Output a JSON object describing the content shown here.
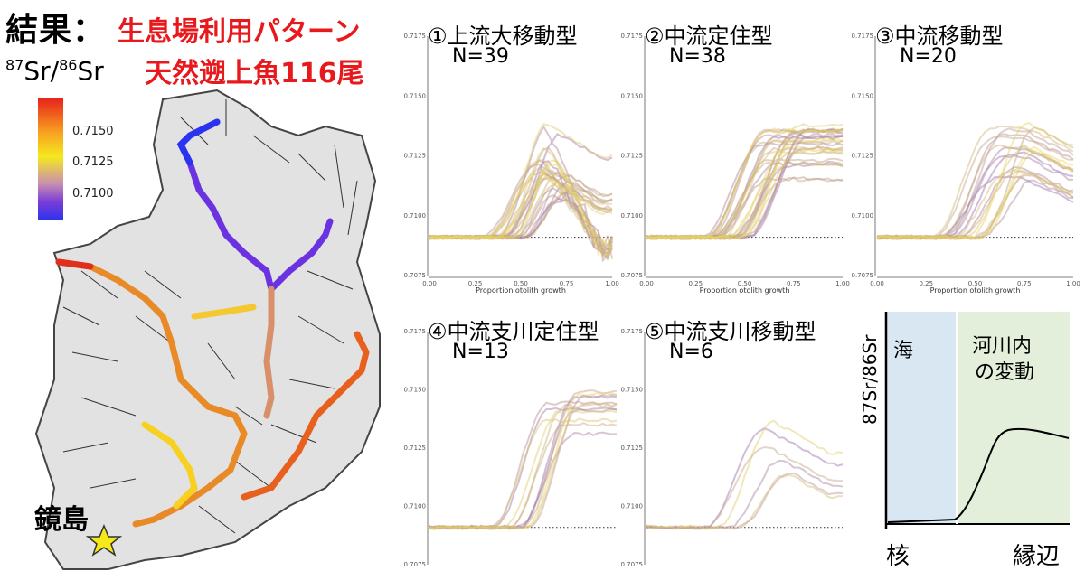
{
  "title": {
    "main": "結果：",
    "sub": "生息場利用パターン",
    "sub2": "天然遡上魚116尾"
  },
  "isotope_label": {
    "sup1": "87",
    "sr1": "Sr/",
    "sup2": "86",
    "sr2": "Sr"
  },
  "colorbar": {
    "ticks": [
      "0.7150",
      "0.7125",
      "0.7100"
    ],
    "colors": [
      "#e8201c",
      "#f7a020",
      "#f5e81e",
      "#c98fb0",
      "#7a3cd8",
      "#2a33f0"
    ]
  },
  "map": {
    "place_label": "鏡島",
    "star_color": "#f7e81a"
  },
  "chart_data": [
    {
      "type": "line",
      "title": "①上流大移動型",
      "n_label": "N=39",
      "xlabel": "Proportion otolith growth",
      "xlim": [
        0,
        1
      ],
      "ylim": [
        0.7075,
        0.7175
      ],
      "x_ticks": [
        "0.00",
        "0.25",
        "0.50",
        "0.75",
        "1.00"
      ],
      "y_ticks": [
        "0.7075",
        "0.7100",
        "0.7125",
        "0.7150",
        "0.7175"
      ],
      "baseline": 0.7091,
      "pattern": "rise then fall"
    },
    {
      "type": "line",
      "title": "②中流定住型",
      "n_label": "N=38",
      "xlabel": "Proportion otolith growth",
      "xlim": [
        0,
        1
      ],
      "ylim": [
        0.7075,
        0.7175
      ],
      "x_ticks": [
        "0.00",
        "0.25",
        "0.50",
        "0.75",
        "1.00"
      ],
      "y_ticks": [
        "0.7075",
        "0.7100",
        "0.7125",
        "0.7150",
        "0.7175"
      ],
      "baseline": 0.7091,
      "pattern": "rise then plateau"
    },
    {
      "type": "line",
      "title": "③中流移動型",
      "n_label": "N=20",
      "xlabel": "Proportion otolith growth",
      "xlim": [
        0,
        1
      ],
      "ylim": [
        0.7075,
        0.7175
      ],
      "x_ticks": [
        "0.00",
        "0.25",
        "0.50",
        "0.75",
        "1.00"
      ],
      "y_ticks": [
        "0.7075",
        "0.7100",
        "0.7125",
        "0.7150",
        "0.7175"
      ],
      "baseline": 0.7091,
      "pattern": "rise then slight fall"
    },
    {
      "type": "line",
      "title": "④中流支川定住型",
      "n_label": "N=13",
      "xlabel": "",
      "xlim": [
        0,
        1
      ],
      "ylim": [
        0.7075,
        0.7175
      ],
      "x_ticks": [],
      "y_ticks": [
        "0.7075",
        "0.7100",
        "0.7125",
        "0.7150",
        "0.7175"
      ],
      "baseline": 0.7091,
      "pattern": "rise to high plateau"
    },
    {
      "type": "line",
      "title": "⑤中流支川移動型",
      "n_label": "N=6",
      "xlabel": "",
      "xlim": [
        0,
        1
      ],
      "ylim": [
        0.7075,
        0.7175
      ],
      "x_ticks": [],
      "y_ticks": [
        "0.7075",
        "0.7100",
        "0.7125",
        "0.7150",
        "0.7175"
      ],
      "baseline": 0.7091,
      "pattern": "rise then fall"
    }
  ],
  "schema": {
    "sea_label": "海",
    "river_label_1": "河川内",
    "river_label_2": "の変動",
    "y_label": "87Sr/86Sr",
    "x_left": "核",
    "x_right": "縁辺",
    "sea_color": "#d9e7f3",
    "river_color": "#e3efda"
  }
}
